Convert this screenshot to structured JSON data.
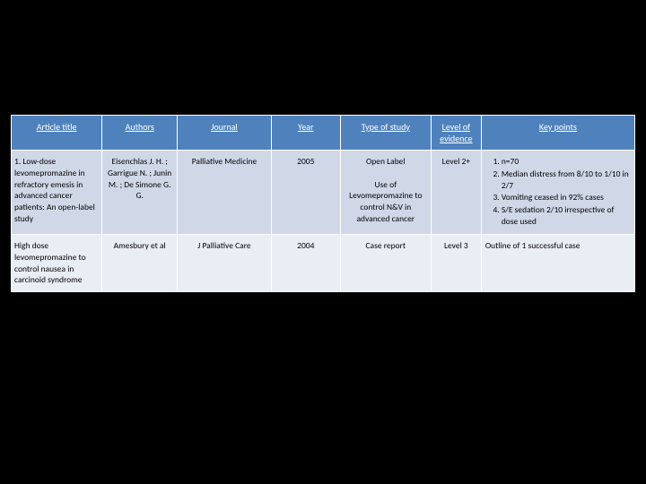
{
  "table": {
    "header_bg": "#4f81bd",
    "row_bg": "#d0d8e8",
    "alt_row_bg": "#e9edf4",
    "header_font_size": 10,
    "cell_font_size": 9.5,
    "columns": [
      {
        "key": "title",
        "label": "Article title"
      },
      {
        "key": "authors",
        "label": "Authors"
      },
      {
        "key": "journal",
        "label": "Journal"
      },
      {
        "key": "year",
        "label": "Year"
      },
      {
        "key": "type",
        "label": "Type of study"
      },
      {
        "key": "level",
        "label": "Level of evidence"
      },
      {
        "key": "key",
        "label": "Key points"
      }
    ],
    "rows": [
      {
        "title": "1. Low-dose levomepromazine in refractory emesis in advanced cancer patients: An open-label study",
        "authors": "Eisenchlas J. H. ; Garrigue N. ; Junin M. ; De Simone G. G.",
        "journal": "Palliative Medicine",
        "year": "2005",
        "type": "Open Label\n\nUse of Levomepromazine to control N&V in advanced cancer",
        "level": "Level 2+",
        "key_points": [
          "n=70",
          "Median distress from 8/10 to 1/10 in 2/7",
          "Vomiting ceased in 92% cases",
          "S/E sedation 2/10 irrespective of dose used"
        ]
      },
      {
        "title": "High dose levomepromazine to control nausea in carcinoid syndrome",
        "authors": "Amesbury et al",
        "journal": "J Palliative Care",
        "year": "2004",
        "type": "Case report",
        "level": "Level 3",
        "key_text": "Outline of 1 successful case"
      }
    ]
  }
}
